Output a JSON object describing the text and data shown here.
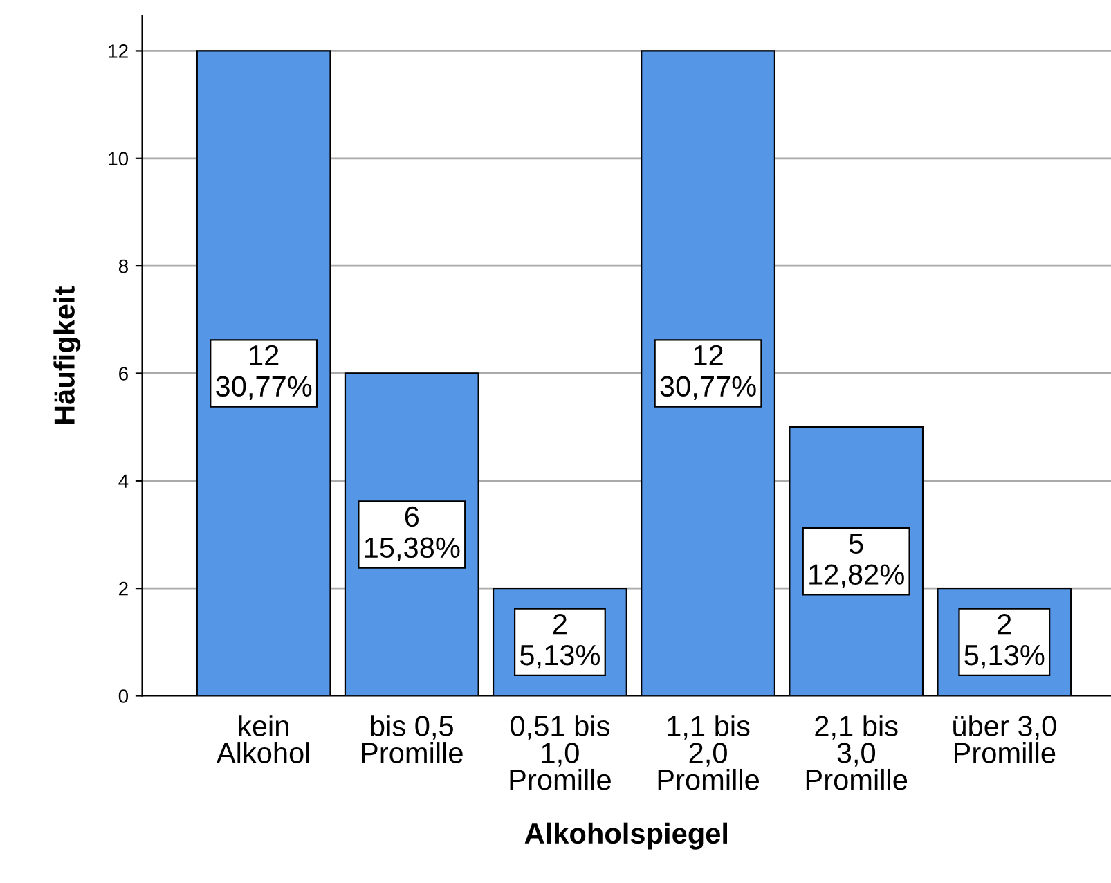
{
  "chart_data": {
    "type": "bar",
    "xlabel": "Alkoholspiegel",
    "ylabel": "Häufigkeit",
    "categories": [
      "kein\nAlkohol",
      "bis 0,5\nPromille",
      "0,51 bis\n1,0\nPromille",
      "1,1 bis\n2,0\nPromille",
      "2,1 bis\n3,0\nPromille",
      "über 3,0\nPromille"
    ],
    "values": [
      12,
      6,
      2,
      12,
      5,
      2
    ],
    "value_labels": [
      "12\n30,77%",
      "6\n15,38%",
      "2\n5,13%",
      "12\n30,77%",
      "5\n12,82%",
      "2\n5,13%"
    ],
    "color": "#5596e6",
    "ylim": [
      0,
      12.65
    ],
    "yticks": [
      0,
      2,
      4,
      6,
      8,
      10,
      12
    ],
    "grid": "y"
  }
}
